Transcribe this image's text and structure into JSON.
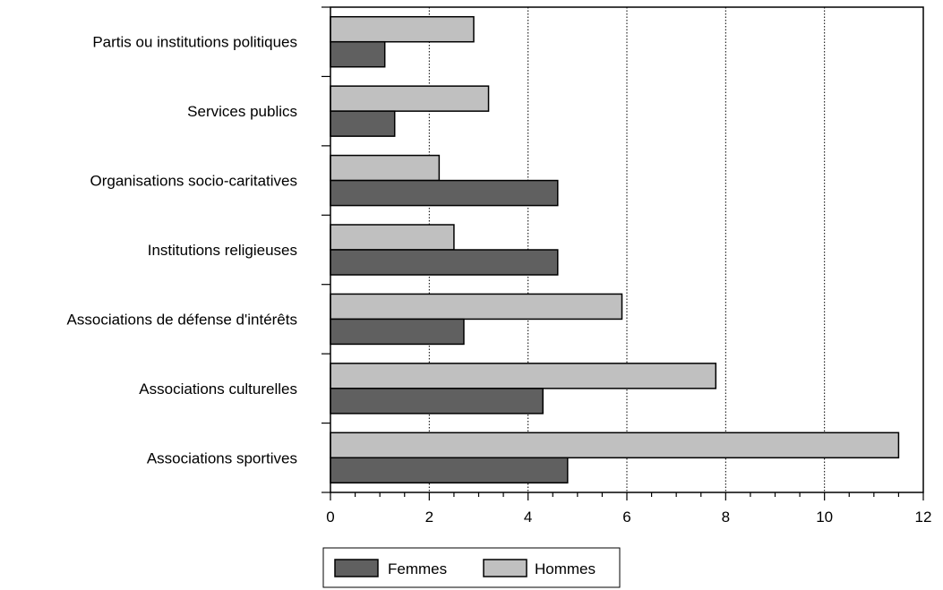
{
  "chart_data": {
    "type": "bar",
    "orientation": "horizontal",
    "categories": [
      "Partis ou institutions politiques",
      "Services publics",
      "Organisations socio-caritatives",
      "Institutions religieuses",
      "Associations de défense d'intérêts",
      "Associations culturelles",
      "Associations sportives"
    ],
    "series": [
      {
        "name": "Hommes",
        "color": "#c0c0c0",
        "values": [
          2.9,
          3.2,
          2.2,
          2.5,
          5.9,
          7.8,
          11.5
        ]
      },
      {
        "name": "Femmes",
        "color": "#606060",
        "values": [
          1.1,
          1.3,
          4.6,
          4.6,
          2.7,
          4.3,
          4.8
        ]
      }
    ],
    "xlim": [
      0,
      12
    ],
    "xticks": [
      0,
      2,
      4,
      6,
      8,
      10,
      12
    ],
    "xgrid": true,
    "legend": {
      "position": "bottom",
      "entries": [
        {
          "name": "Femmes",
          "color": "#606060"
        },
        {
          "name": "Hommes",
          "color": "#c0c0c0"
        }
      ]
    },
    "title": "",
    "xlabel": "",
    "ylabel": ""
  }
}
